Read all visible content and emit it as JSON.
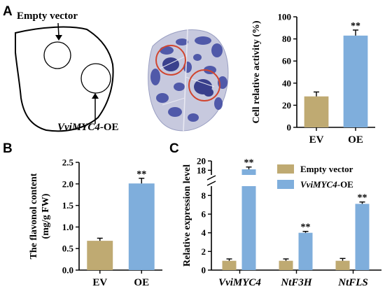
{
  "panels": {
    "A": "A",
    "B": "B",
    "C": "C"
  },
  "diagram": {
    "label_top": "Empty vector",
    "label_bottom_gene": "VviMYC4",
    "label_bottom_suffix": "-OE"
  },
  "chart_data": [
    {
      "id": "A",
      "type": "bar",
      "categories": [
        "EV",
        "OE"
      ],
      "values": [
        28,
        83
      ],
      "errors": [
        4,
        5
      ],
      "significance": [
        "",
        "**"
      ],
      "colors": [
        "#BFAA72",
        "#7FAEDC"
      ],
      "ylabel": "Cell relative activity (%)",
      "ylim": [
        0,
        100
      ],
      "yticks": [
        0,
        20,
        40,
        60,
        80,
        100
      ],
      "grid": false
    },
    {
      "id": "B",
      "type": "bar",
      "categories": [
        "EV",
        "OE"
      ],
      "values": [
        0.68,
        2.01
      ],
      "errors": [
        0.06,
        0.12
      ],
      "significance": [
        "",
        "**"
      ],
      "colors": [
        "#BFAA72",
        "#7FAEDC"
      ],
      "ylabel_lines": [
        "The flavonol content",
        "(mg/g FW)"
      ],
      "ylim": [
        0,
        2.5
      ],
      "yticks": [
        "0.0",
        "0.5",
        "1.0",
        "1.5",
        "2.0",
        "2.5"
      ],
      "grid": false
    },
    {
      "id": "C",
      "type": "bar",
      "categories": [
        "VviMYC4",
        "NtF3H",
        "NtFLS"
      ],
      "series": [
        {
          "name": "Empty vector",
          "values": [
            1.0,
            1.0,
            1.0
          ],
          "errors": [
            0.2,
            0.2,
            0.25
          ],
          "color": "#BFAA72"
        },
        {
          "name": "VviMYC4-OE",
          "values": [
            18.2,
            4.0,
            7.1
          ],
          "errors": [
            0.5,
            0.15,
            0.2
          ],
          "color": "#7FAEDC"
        }
      ],
      "significance": [
        "**",
        "**",
        "**"
      ],
      "ylabel": "Relative expression level",
      "ylim": [
        0,
        20
      ],
      "axis_break": [
        9,
        17
      ],
      "yticks_lower": [
        0,
        2,
        4,
        6,
        8
      ],
      "yticks_upper": [
        18,
        20
      ],
      "legend_position": "top-right",
      "grid": false
    }
  ]
}
